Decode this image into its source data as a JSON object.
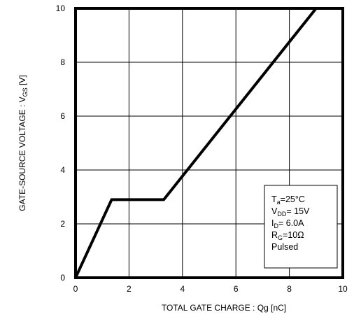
{
  "chart_data": {
    "type": "line",
    "title": "",
    "xlabel": "TOTAL GATE CHARGE : Qg  [nC]",
    "ylabel": {
      "main": "GATE-SOURCE VOLTAGE : V",
      "sub": "GS",
      "unit": " [V]"
    },
    "xlim": [
      0,
      10
    ],
    "ylim": [
      0,
      10
    ],
    "xticks": [
      "0",
      "2",
      "4",
      "6",
      "8",
      "10"
    ],
    "yticks": [
      "0",
      "2",
      "4",
      "6",
      "8",
      "10"
    ],
    "grid": true,
    "series": [
      {
        "x": [
          0,
          1.35,
          3.3,
          9.0
        ],
        "y": [
          0,
          2.9,
          2.9,
          10
        ]
      }
    ],
    "legend_box": {
      "placement": "bottom-right",
      "lines": [
        {
          "main": "T",
          "sub": "a",
          "rest": "=25°C"
        },
        {
          "main": "V",
          "sub": "DD",
          "rest": "= 15V"
        },
        {
          "main": "I",
          "sub": "D",
          "rest": "= 6.0A"
        },
        {
          "main": "R",
          "sub": "G",
          "rest": "=10Ω"
        },
        {
          "main": "Pulsed",
          "sub": "",
          "rest": ""
        }
      ]
    }
  }
}
